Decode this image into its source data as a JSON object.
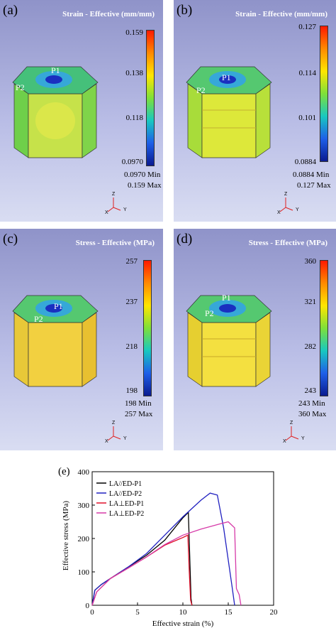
{
  "panels": [
    {
      "label": "(a)",
      "title": "Strain - Effective (mm/mm)",
      "ticks": [
        "0.159",
        "0.138",
        "0.118",
        "0.0970"
      ],
      "min_line": "0.0970  Min",
      "max_line": "0.159  Max",
      "points": [
        "P1",
        "P2"
      ],
      "triad": [
        "Z",
        "X",
        "Y"
      ]
    },
    {
      "label": "(b)",
      "title": "Strain - Effective (mm/mm)",
      "ticks": [
        "0.127",
        "0.114",
        "0.101",
        "0.0884"
      ],
      "min_line": "0.0884  Min",
      "max_line": "0.127  Max",
      "points": [
        "P1",
        "P2"
      ],
      "triad": [
        "Z",
        "X",
        "Y"
      ]
    },
    {
      "label": "(c)",
      "title": "Stress - Effective (MPa)",
      "ticks": [
        "257",
        "237",
        "218",
        "198"
      ],
      "min_line": "198  Min",
      "max_line": "257  Max",
      "points": [
        "P1",
        "P2"
      ],
      "triad": [
        "Z",
        "X",
        "Y"
      ]
    },
    {
      "label": "(d)",
      "title": "Stress - Effective (MPa)",
      "ticks": [
        "360",
        "321",
        "282",
        "243"
      ],
      "min_line": "243  Min",
      "max_line": "360  Max",
      "points": [
        "P1",
        "P2"
      ],
      "triad": [
        "Z",
        "X",
        "Y"
      ]
    }
  ],
  "chart_label": "(e)",
  "chart_data": {
    "type": "line",
    "xlabel": "Effective strain (%)",
    "ylabel": "Effective stress (MPa)",
    "xlim": [
      0,
      20
    ],
    "ylim": [
      0,
      400
    ],
    "xticks": [
      "0",
      "5",
      "10",
      "15",
      "20"
    ],
    "yticks": [
      "0",
      "100",
      "200",
      "300",
      "400"
    ],
    "legend_position": "top-left",
    "series": [
      {
        "name": "LA//ED-P1",
        "color": "#000000",
        "points": [
          [
            0,
            0
          ],
          [
            0.3,
            45
          ],
          [
            1,
            62
          ],
          [
            2,
            80
          ],
          [
            4,
            115
          ],
          [
            6,
            150
          ],
          [
            8,
            195
          ],
          [
            10,
            262
          ],
          [
            10.6,
            278
          ],
          [
            10.75,
            150
          ],
          [
            10.9,
            20
          ],
          [
            11,
            0
          ]
        ]
      },
      {
        "name": "LA//ED-P2",
        "color": "#2020c0",
        "points": [
          [
            0,
            0
          ],
          [
            0.3,
            45
          ],
          [
            1,
            62
          ],
          [
            2,
            80
          ],
          [
            4,
            115
          ],
          [
            6,
            155
          ],
          [
            8,
            210
          ],
          [
            10,
            265
          ],
          [
            12,
            315
          ],
          [
            13,
            336
          ],
          [
            13.8,
            330
          ],
          [
            14.5,
            230
          ],
          [
            15.4,
            60
          ],
          [
            15.7,
            0
          ]
        ]
      },
      {
        "name": "LA⊥ED-P1",
        "color": "#e0102a",
        "points": [
          [
            0,
            0
          ],
          [
            0.5,
            40
          ],
          [
            2,
            80
          ],
          [
            4,
            112
          ],
          [
            6,
            145
          ],
          [
            8,
            180
          ],
          [
            10,
            203
          ],
          [
            10.55,
            210
          ],
          [
            10.7,
            100
          ],
          [
            10.85,
            15
          ],
          [
            11,
            0
          ]
        ]
      },
      {
        "name": "LA⊥ED-P2",
        "color": "#d63aa8",
        "points": [
          [
            0,
            0
          ],
          [
            0.5,
            40
          ],
          [
            2,
            80
          ],
          [
            4,
            112
          ],
          [
            6,
            145
          ],
          [
            8,
            182
          ],
          [
            10,
            210
          ],
          [
            12,
            228
          ],
          [
            14,
            243
          ],
          [
            15,
            250
          ],
          [
            15.7,
            232
          ],
          [
            15.9,
            50
          ],
          [
            16.2,
            32
          ],
          [
            16.4,
            0
          ]
        ]
      }
    ]
  }
}
